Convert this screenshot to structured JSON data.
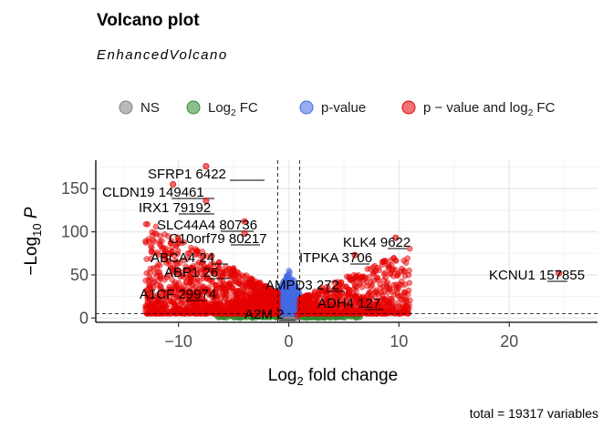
{
  "title": "Volcano plot",
  "subtitle": "EnhancedVolcano",
  "caption": "total = 19317 variables",
  "chart_data": {
    "type": "scatter",
    "xlabel": "Log₂ fold change",
    "ylabel": "−Log₁₀ P",
    "xlim": [
      -17.5,
      28
    ],
    "ylim": [
      -5,
      183
    ],
    "x_ticks": [
      -10,
      0,
      10,
      20
    ],
    "y_ticks": [
      0,
      50,
      100,
      150
    ],
    "fc_cutoff": 1,
    "p_cutoff_neglog10": 5,
    "grid": true,
    "legend_position": "top",
    "legend": [
      {
        "name": "NS",
        "color": "#808080"
      },
      {
        "name": "Log2 FC",
        "color": "#2e8b2e",
        "rich": "log2fc"
      },
      {
        "name": "p-value",
        "color": "#4169e1"
      },
      {
        "name": "p−value and log2 FC",
        "color": "#e60000",
        "rich": "both"
      }
    ],
    "labeled_genes": [
      {
        "gene": "SFRP1",
        "id": "6422",
        "x": -7.5,
        "y": 176
      },
      {
        "gene": "CLDN19",
        "id": "149461",
        "x": -10.5,
        "y": 155
      },
      {
        "gene": "IRX1",
        "id": "79192",
        "x": -7.5,
        "y": 136
      },
      {
        "gene": "SLC44A4",
        "id": "80736",
        "x": -4,
        "y": 112
      },
      {
        "gene": "C10orf79",
        "id": "80217",
        "x": -4,
        "y": 98
      },
      {
        "gene": "KLK4",
        "id": "9622",
        "x": 9.7,
        "y": 93
      },
      {
        "gene": "ITPKA",
        "id": "3706",
        "x": 6,
        "y": 73
      },
      {
        "gene": "ABCA4",
        "id": "24",
        "x": -7,
        "y": 72
      },
      {
        "gene": "ABP1",
        "id": "26",
        "x": -7.5,
        "y": 55
      },
      {
        "gene": "KCNU1",
        "id": "157855",
        "x": 24.5,
        "y": 52
      },
      {
        "gene": "AMPD3",
        "id": "272",
        "x": 3.5,
        "y": 36
      },
      {
        "gene": "A1CF",
        "id": "29974",
        "x": -8.5,
        "y": 28
      },
      {
        "gene": "ADH4",
        "id": "127",
        "x": 6.5,
        "y": 20
      },
      {
        "gene": "A2M",
        "id": "2",
        "x": 0.8,
        "y": 3
      }
    ]
  }
}
